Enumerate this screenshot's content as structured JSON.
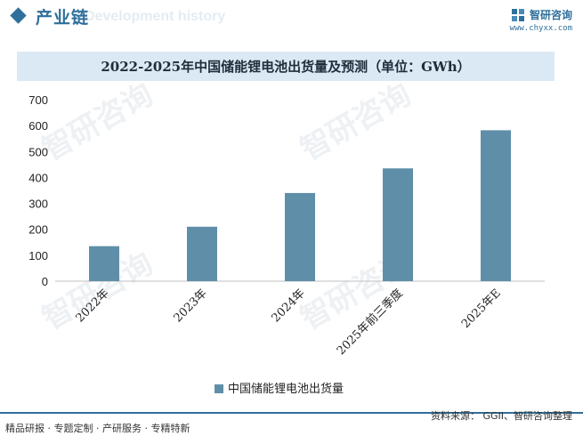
{
  "header": {
    "section_title": "产业链",
    "ghost_text": "Development history",
    "brand_name": "智研咨询",
    "brand_url": "www.chyxx.com"
  },
  "chart_title": "2022-2025年中国储能锂电池出货量及预测（单位：GWh）",
  "chart_data": {
    "type": "bar",
    "categories": [
      "2022年",
      "2023年",
      "2024年",
      "2025年前三季度",
      "2025年E"
    ],
    "series": [
      {
        "name": "中国储能锂电池出货量",
        "values": [
          135,
          210,
          340,
          435,
          582
        ]
      }
    ],
    "title": "2022-2025年中国储能锂电池出货量及预测（单位：GWh）",
    "xlabel": "",
    "ylabel": "",
    "ylim": [
      0,
      700
    ],
    "yticks": [
      "0",
      "100",
      "200",
      "300",
      "400",
      "500",
      "600",
      "700"
    ],
    "grid": false,
    "legend": "bottom",
    "colors": {
      "bar": "#5f8fa8"
    }
  },
  "footer": {
    "left": "精品研报 · 专题定制 · 产研服务 · 专精特新",
    "right": "资料来源： GGII、智研咨询整理"
  },
  "colors": {
    "accent": "#2f6f9b",
    "title_bg": "#dbe9f5"
  }
}
